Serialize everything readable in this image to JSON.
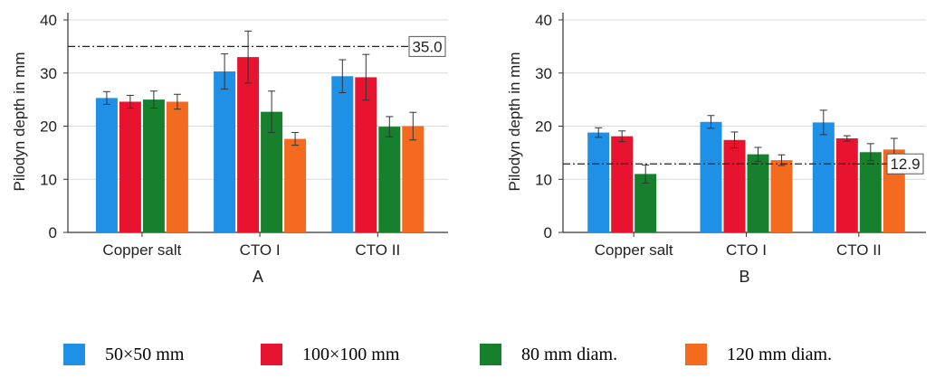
{
  "chart_data": [
    {
      "type": "bar",
      "panel_label": "A",
      "ylabel": "Pilodyn depth in mm",
      "ylim": [
        0,
        40
      ],
      "yticks": [
        "0",
        "10",
        "20",
        "30",
        "40"
      ],
      "categories": [
        "Copper salt",
        "CTO I",
        "CTO II"
      ],
      "grid": true,
      "reference_line": {
        "value": 35.0,
        "label": "35.0"
      },
      "series": [
        {
          "name": "50×50 mm",
          "color": "#1e90e6",
          "values": [
            25.3,
            30.3,
            29.4
          ],
          "error": [
            1.2,
            3.3,
            3.1
          ]
        },
        {
          "name": "100×100 mm",
          "color": "#e8132e",
          "values": [
            24.6,
            33.0,
            29.2
          ],
          "error": [
            1.2,
            4.9,
            4.3
          ]
        },
        {
          "name": "80 mm diam.",
          "color": "#16802c",
          "values": [
            25.0,
            22.7,
            19.9
          ],
          "error": [
            1.6,
            3.9,
            1.9
          ]
        },
        {
          "name": "120 mm diam.",
          "color": "#f46a1f",
          "values": [
            24.6,
            17.6,
            20.0
          ],
          "error": [
            1.4,
            1.2,
            2.6
          ]
        }
      ]
    },
    {
      "type": "bar",
      "panel_label": "B",
      "ylabel": "Pilodyn depth in mm",
      "ylim": [
        0,
        40
      ],
      "yticks": [
        "0",
        "10",
        "20",
        "30",
        "40"
      ],
      "categories": [
        "Copper salt",
        "CTO I",
        "CTO II"
      ],
      "grid": true,
      "reference_line": {
        "value": 12.9,
        "label": "12.9"
      },
      "series": [
        {
          "name": "50×50 mm",
          "color": "#1e90e6",
          "values": [
            18.8,
            20.8,
            20.7
          ],
          "error": [
            0.9,
            1.2,
            2.3
          ]
        },
        {
          "name": "100×100 mm",
          "color": "#e8132e",
          "values": [
            18.1,
            17.4,
            17.7
          ],
          "error": [
            1.0,
            1.5,
            0.5
          ]
        },
        {
          "name": "80 mm diam.",
          "color": "#16802c",
          "values": [
            11.0,
            14.7,
            15.1
          ],
          "error": [
            1.7,
            1.3,
            1.6
          ]
        },
        {
          "name": "120 mm diam.",
          "color": "#f46a1f",
          "values": [
            null,
            13.6,
            15.6
          ],
          "error": [
            null,
            1.0,
            2.1
          ]
        }
      ]
    }
  ],
  "legend": {
    "items": [
      {
        "label": "50×50 mm",
        "color": "#1e90e6"
      },
      {
        "label": "100×100 mm",
        "color": "#e8132e"
      },
      {
        "label": "80 mm diam.",
        "color": "#16802c"
      },
      {
        "label": "120 mm diam.",
        "color": "#f46a1f"
      }
    ]
  }
}
